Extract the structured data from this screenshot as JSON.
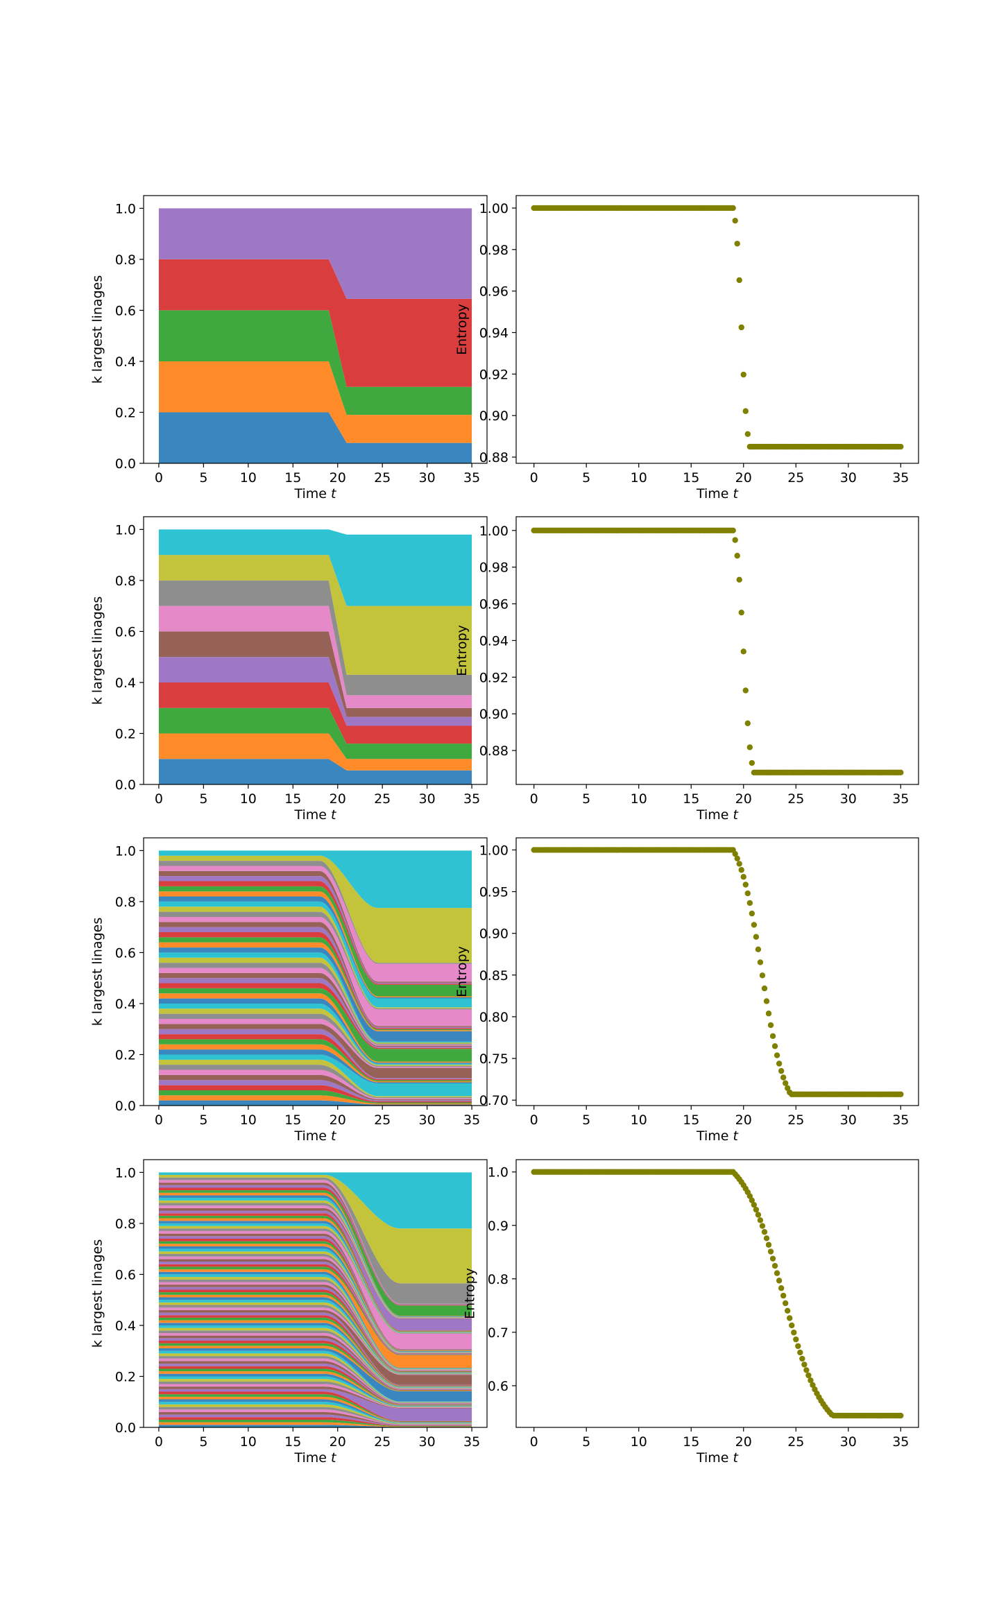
{
  "chart_data": [
    {
      "type": "area",
      "stacked": true,
      "panel": "row1-left",
      "k_lineages": 5,
      "xlabel": "Time",
      "xlabel_var": "t",
      "ylabel": "k largest linages",
      "xlim": [
        -1.7,
        36.7
      ],
      "ylim": [
        0,
        1.05
      ],
      "xticks": [
        "0",
        "5",
        "10",
        "15",
        "20",
        "25",
        "30",
        "35"
      ],
      "yticks": [
        "0.0",
        "0.2",
        "0.4",
        "0.6",
        "0.8",
        "1.0"
      ],
      "x": [
        0,
        19,
        21,
        35
      ],
      "series": [
        {
          "values": [
            0.2,
            0.2,
            0.08,
            0.08
          ]
        },
        {
          "values": [
            0.2,
            0.2,
            0.11,
            0.11
          ]
        },
        {
          "values": [
            0.2,
            0.2,
            0.11,
            0.11
          ]
        },
        {
          "values": [
            0.2,
            0.2,
            0.345,
            0.345
          ]
        },
        {
          "values": [
            0.2,
            0.2,
            0.355,
            0.355
          ]
        }
      ]
    },
    {
      "type": "scatter",
      "panel": "row1-right",
      "xlabel": "Time",
      "xlabel_var": "t",
      "ylabel": "Entropy",
      "xlim": [
        -1.7,
        36.7
      ],
      "ylim": [
        0.877,
        1.006
      ],
      "xticks": [
        "0",
        "5",
        "10",
        "15",
        "20",
        "25",
        "30",
        "35"
      ],
      "yticks": [
        "0.88",
        "0.90",
        "0.92",
        "0.94",
        "0.96",
        "0.98",
        "1.00"
      ],
      "transition": {
        "t_start": 19.0,
        "t_end": 20.6,
        "y_start": 1.0,
        "y_end": 0.885,
        "sharpness": 6
      },
      "t_range": [
        0,
        35
      ],
      "n_points": 176
    },
    {
      "type": "area",
      "stacked": true,
      "panel": "row2-left",
      "k_lineages": 10,
      "xlabel": "Time",
      "xlabel_var": "t",
      "ylabel": "k largest linages",
      "xlim": [
        -1.7,
        36.7
      ],
      "ylim": [
        0,
        1.05
      ],
      "xticks": [
        "0",
        "5",
        "10",
        "15",
        "20",
        "25",
        "30",
        "35"
      ],
      "yticks": [
        "0.0",
        "0.2",
        "0.4",
        "0.6",
        "0.8",
        "1.0"
      ],
      "x": [
        0,
        19,
        21,
        35
      ],
      "series": [
        {
          "values": [
            0.1,
            0.1,
            0.055,
            0.055
          ]
        },
        {
          "values": [
            0.1,
            0.1,
            0.045,
            0.045
          ]
        },
        {
          "values": [
            0.1,
            0.1,
            0.06,
            0.06
          ]
        },
        {
          "values": [
            0.1,
            0.1,
            0.07,
            0.07
          ]
        },
        {
          "values": [
            0.1,
            0.1,
            0.035,
            0.035
          ]
        },
        {
          "values": [
            0.1,
            0.1,
            0.035,
            0.035
          ]
        },
        {
          "values": [
            0.1,
            0.1,
            0.05,
            0.05
          ]
        },
        {
          "values": [
            0.1,
            0.1,
            0.08,
            0.08
          ]
        },
        {
          "values": [
            0.1,
            0.1,
            0.27,
            0.27
          ]
        },
        {
          "values": [
            0.1,
            0.1,
            0.28,
            0.28
          ]
        }
      ]
    },
    {
      "type": "scatter",
      "panel": "row2-right",
      "xlabel": "Time",
      "xlabel_var": "t",
      "ylabel": "Entropy",
      "xlim": [
        -1.7,
        36.7
      ],
      "ylim": [
        0.8615,
        1.0075
      ],
      "xticks": [
        "0",
        "5",
        "10",
        "15",
        "20",
        "25",
        "30",
        "35"
      ],
      "yticks": [
        "0.88",
        "0.90",
        "0.92",
        "0.94",
        "0.96",
        "0.98",
        "1.00"
      ],
      "transition": {
        "t_start": 19.0,
        "t_end": 21.0,
        "y_start": 1.0,
        "y_end": 0.868,
        "sharpness": 6
      },
      "t_range": [
        0,
        35
      ],
      "n_points": 176
    },
    {
      "type": "area",
      "stacked": true,
      "panel": "row3-left",
      "k_lineages": 50,
      "xlabel": "Time",
      "xlabel_var": "t",
      "ylabel": "k largest linages",
      "xlim": [
        -1.7,
        36.7
      ],
      "ylim": [
        0,
        1.05
      ],
      "xticks": [
        "0",
        "5",
        "10",
        "15",
        "20",
        "25",
        "30",
        "35"
      ],
      "yticks": [
        "0.0",
        "0.2",
        "0.4",
        "0.6",
        "0.8",
        "1.0"
      ],
      "transition": {
        "t_start": 18.0,
        "t_end": 24.5
      },
      "top_band_final": 0.225,
      "big_bands": [
        {
          "index": 49,
          "final": 0.225
        },
        {
          "index": 48,
          "final": 0.215
        },
        {
          "index": 46,
          "final": 0.07
        },
        {
          "index": 42,
          "final": 0.045
        },
        {
          "index": 39,
          "final": 0.035
        },
        {
          "index": 36,
          "final": 0.065
        },
        {
          "index": 30,
          "final": 0.04
        },
        {
          "index": 22,
          "final": 0.05
        },
        {
          "index": 15,
          "final": 0.04
        },
        {
          "index": 9,
          "final": 0.05
        }
      ]
    },
    {
      "type": "scatter",
      "panel": "row3-right",
      "xlabel": "Time",
      "xlabel_var": "t",
      "ylabel": "Entropy",
      "xlim": [
        -1.7,
        36.7
      ],
      "ylim": [
        0.6935,
        1.0145
      ],
      "xticks": [
        "0",
        "5",
        "10",
        "15",
        "20",
        "25",
        "30",
        "35"
      ],
      "yticks": [
        "0.70",
        "0.75",
        "0.80",
        "0.85",
        "0.90",
        "0.95",
        "1.00"
      ],
      "transition": {
        "t_start": 19.0,
        "t_end": 24.5,
        "y_start": 1.0,
        "y_end": 0.707,
        "sharpness": 5
      },
      "t_range": [
        0,
        35
      ],
      "n_points": 176
    },
    {
      "type": "area",
      "stacked": true,
      "panel": "row4-left",
      "k_lineages": 100,
      "xlabel": "Time",
      "xlabel_var": "t",
      "ylabel": "k largest linages",
      "xlim": [
        -1.7,
        36.7
      ],
      "ylim": [
        0,
        1.05
      ],
      "xticks": [
        "0",
        "5",
        "10",
        "15",
        "20",
        "25",
        "30",
        "35"
      ],
      "yticks": [
        "0.0",
        "0.2",
        "0.4",
        "0.6",
        "0.8",
        "1.0"
      ],
      "transition": {
        "t_start": 18.5,
        "t_end": 27.0
      },
      "big_bands": [
        {
          "index": 99,
          "final": 0.22
        },
        {
          "index": 98,
          "final": 0.215
        },
        {
          "index": 97,
          "final": 0.08
        },
        {
          "index": 92,
          "final": 0.04
        },
        {
          "index": 84,
          "final": 0.045
        },
        {
          "index": 76,
          "final": 0.06
        },
        {
          "index": 61,
          "final": 0.05
        },
        {
          "index": 45,
          "final": 0.04
        },
        {
          "index": 30,
          "final": 0.04
        },
        {
          "index": 14,
          "final": 0.05
        }
      ]
    },
    {
      "type": "scatter",
      "panel": "row4-right",
      "xlabel": "Time",
      "xlabel_var": "t",
      "ylabel": "Entropy",
      "xlim": [
        -1.7,
        36.7
      ],
      "ylim": [
        0.522,
        1.023
      ],
      "xticks": [
        "0",
        "5",
        "10",
        "15",
        "20",
        "25",
        "30",
        "35"
      ],
      "yticks": [
        "0.6",
        "0.7",
        "0.8",
        "0.9",
        "1.0"
      ],
      "transition": {
        "t_start": 19.0,
        "t_end": 28.5,
        "y_start": 1.0,
        "y_end": 0.544,
        "sharpness": 5
      },
      "t_range": [
        0,
        35
      ],
      "n_points": 176
    }
  ],
  "colors": {
    "palette": [
      "#3a86be",
      "#ff8c28",
      "#3fa83f",
      "#da3d3d",
      "#9e78c4",
      "#966258",
      "#e589c9",
      "#8e8e8e",
      "#c4c43c",
      "#2fc2d2"
    ],
    "scatter": "#808000"
  }
}
